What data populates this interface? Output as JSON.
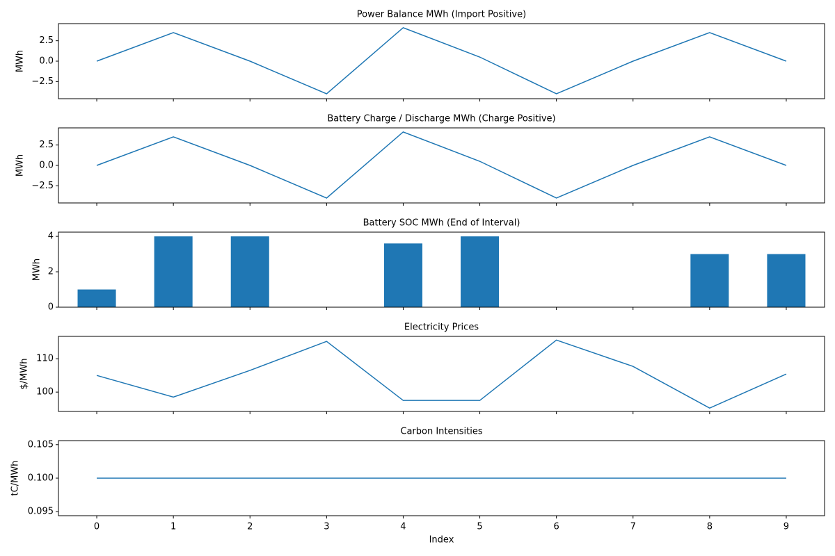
{
  "chart_data": [
    {
      "type": "line",
      "title": "Power Balance MWh (Import Positive)",
      "ylabel": "MWh",
      "color": "#1f77b4",
      "x": [
        0,
        1,
        2,
        3,
        4,
        5,
        6,
        7,
        8,
        9
      ],
      "values": [
        0,
        3.5,
        0,
        -4,
        4.1,
        0.5,
        -4,
        0,
        3.5,
        0
      ],
      "xlim": [
        -0.5,
        9.5
      ],
      "xticks": [
        0,
        1,
        2,
        3,
        4,
        5,
        6,
        7,
        8,
        9
      ],
      "ylim": [
        -4.6,
        4.6
      ],
      "yticks": [
        {
          "value": -2.5,
          "label": "−2.5"
        },
        {
          "value": 0,
          "label": "0.0"
        },
        2.5
      ]
    },
    {
      "type": "line",
      "title": "Battery Charge / Discharge MWh (Charge Positive)",
      "ylabel": "MWh",
      "color": "#1f77b4",
      "x": [
        0,
        1,
        2,
        3,
        4,
        5,
        6,
        7,
        8,
        9
      ],
      "values": [
        0,
        3.5,
        0,
        -4,
        4.1,
        0.5,
        -4,
        0,
        3.5,
        0
      ],
      "xlim": [
        -0.5,
        9.5
      ],
      "xticks": [
        0,
        1,
        2,
        3,
        4,
        5,
        6,
        7,
        8,
        9
      ],
      "ylim": [
        -4.6,
        4.6
      ],
      "yticks": [
        {
          "value": -2.5,
          "label": "−2.5"
        },
        {
          "value": 0,
          "label": "0.0"
        },
        2.5
      ]
    },
    {
      "type": "bar",
      "title": "Battery SOC MWh (End of Interval)",
      "ylabel": "MWh",
      "color": "#1f77b4",
      "x": [
        0,
        1,
        2,
        3,
        4,
        5,
        6,
        7,
        8,
        9
      ],
      "values": [
        1,
        4,
        4,
        0,
        3.6,
        4,
        0,
        0,
        3,
        3
      ],
      "xlim": [
        -0.5,
        9.5
      ],
      "xticks": [
        0,
        1,
        2,
        3,
        4,
        5,
        6,
        7,
        8,
        9
      ],
      "ylim": [
        0,
        4.24
      ],
      "yticks": [
        0,
        2,
        4
      ]
    },
    {
      "type": "line",
      "title": "Electricity Prices",
      "ylabel": "$/MWh",
      "color": "#1f77b4",
      "x": [
        0,
        1,
        2,
        3,
        4,
        5,
        6,
        7,
        8,
        9
      ],
      "values": [
        105,
        98.5,
        106.5,
        115.2,
        97.5,
        97.5,
        115.6,
        107.7,
        95.2,
        105.4
      ],
      "xlim": [
        -0.5,
        9.5
      ],
      "xticks": [
        0,
        1,
        2,
        3,
        4,
        5,
        6,
        7,
        8,
        9
      ],
      "ylim": [
        94.2,
        116.7
      ],
      "yticks": [
        100,
        110
      ]
    },
    {
      "type": "line",
      "title": "Carbon Intensities",
      "ylabel": "tC/MWh",
      "xlabel": "Index",
      "color": "#1f77b4",
      "x": [
        0,
        1,
        2,
        3,
        4,
        5,
        6,
        7,
        8,
        9
      ],
      "values": [
        0.1,
        0.1,
        0.1,
        0.1,
        0.1,
        0.1,
        0.1,
        0.1,
        0.1,
        0.1
      ],
      "xlim": [
        -0.5,
        9.5
      ],
      "xticks": [
        0,
        1,
        2,
        3,
        4,
        5,
        6,
        7,
        8,
        9
      ],
      "ylim": [
        0.0944,
        0.1056
      ],
      "yticks": [
        0.095,
        {
          "value": 0.1,
          "label": "0.100"
        },
        0.105
      ]
    }
  ]
}
